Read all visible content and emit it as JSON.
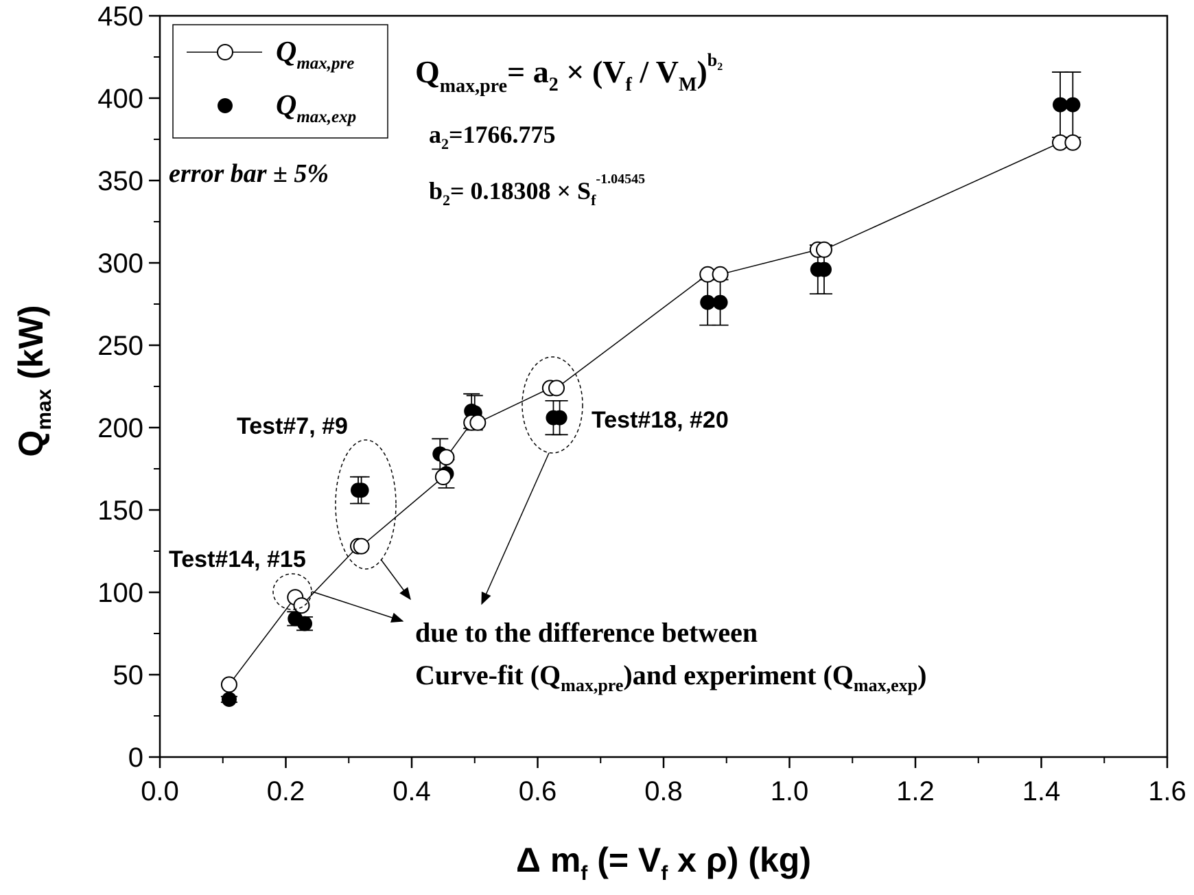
{
  "chart_data": {
    "type": "scatter",
    "xlabel": "Δ m_f (= V_f x ρ) (kg)",
    "ylabel": "Q_max (kW)",
    "xlim": [
      0.0,
      1.6
    ],
    "ylim": [
      0,
      450
    ],
    "x_ticks": [
      "0.0",
      "0.2",
      "0.4",
      "0.6",
      "0.8",
      "1.0",
      "1.2",
      "1.4",
      "1.6"
    ],
    "y_ticks": [
      "0",
      "50",
      "100",
      "150",
      "200",
      "250",
      "300",
      "350",
      "400",
      "450"
    ],
    "grid": false,
    "legend_position": "top-left",
    "series": [
      {
        "name": "Q_max,pre",
        "style": "open-circle-line",
        "x": [
          0.11,
          0.215,
          0.225,
          0.315,
          0.32,
          0.45,
          0.455,
          0.495,
          0.505,
          0.62,
          0.63,
          0.87,
          0.89,
          1.045,
          1.055,
          1.43,
          1.45
        ],
        "y": [
          44,
          97,
          92,
          128,
          128,
          170,
          182,
          203,
          203,
          224,
          224,
          293,
          293,
          308,
          308,
          373,
          373
        ]
      },
      {
        "name": "Q_max,exp",
        "style": "filled-circle-errorbar",
        "error_pct": 5,
        "x": [
          0.11,
          0.215,
          0.23,
          0.315,
          0.32,
          0.445,
          0.455,
          0.495,
          0.5,
          0.625,
          0.635,
          0.87,
          0.89,
          1.045,
          1.055,
          1.43,
          1.45
        ],
        "y": [
          35,
          84,
          81,
          162,
          162,
          184,
          172,
          210,
          209,
          206,
          206,
          276,
          276,
          296,
          296,
          396,
          396
        ]
      }
    ],
    "annotations": {
      "equation": {
        "lhs_main": "Q",
        "lhs_sub": "max,pre",
        "equals": "= a",
        "a_sub": "2",
        "times": " × (V",
        "vf_sub": "f",
        "slash": " / V",
        "vm_sub": "M",
        "close": ")",
        "exp_b": "b",
        "exp_b_sub": "2"
      },
      "a2": {
        "main": "a",
        "sub": "2",
        "value": "=1766.775"
      },
      "b2": {
        "main": "b",
        "sub": "2",
        "eq": "= 0.18308 × S",
        "s_sub": "f",
        "exp": "-1.04545"
      },
      "error_bar_text": "error bar ± 5%",
      "test_7_9": "Test#7, #9",
      "test_14_15": "Test#14, #15",
      "test_18_20": "Test#18, #20",
      "note_line1": "due to the difference between",
      "note_line2": {
        "a": "Curve-fit (Q",
        "a_sub": "max,pre",
        "b": ")and experiment (Q",
        "b_sub": "max,exp",
        "c": ")"
      }
    },
    "legend": [
      {
        "main": "Q",
        "sub": "max,pre"
      },
      {
        "main": "Q",
        "sub": "max,exp"
      }
    ],
    "axis_title_parts": {
      "x": {
        "a": "Δ m",
        "a_sub": "f",
        "b": " (= V",
        "b_sub": "f",
        "c": " x ρ) (kg)"
      },
      "y": {
        "a": "Q",
        "a_sub": "max",
        "b": " (kW)"
      }
    }
  }
}
